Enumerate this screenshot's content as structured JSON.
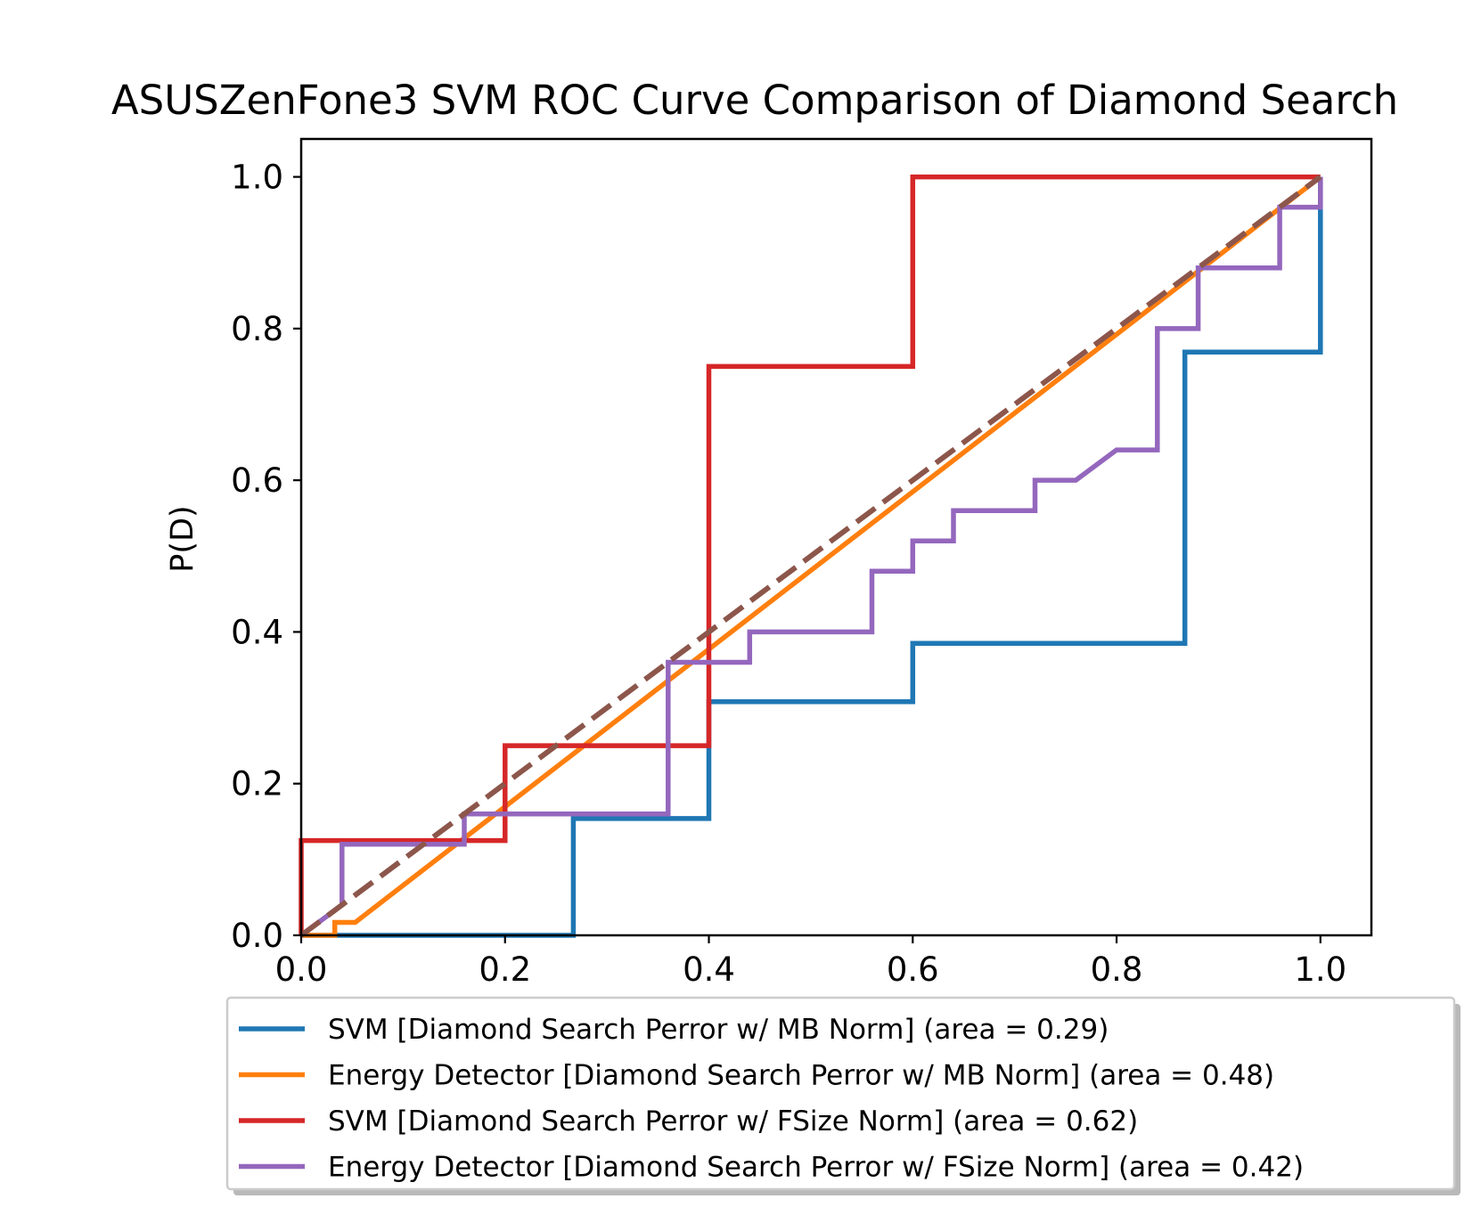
{
  "chart_data": {
    "type": "line",
    "title": "ASUSZenFone3 SVM ROC Curve Comparison of Diamond Search",
    "xlabel": "",
    "ylabel": "P(D)",
    "xlim": [
      0.0,
      1.05
    ],
    "ylim": [
      0.0,
      1.05
    ],
    "xticks": [
      "0.0",
      "0.2",
      "0.4",
      "0.6",
      "0.8",
      "1.0"
    ],
    "yticks": [
      "0.0",
      "0.2",
      "0.4",
      "0.6",
      "0.8",
      "1.0"
    ],
    "grid": false,
    "legend_position": "below",
    "series": [
      {
        "name": "SVM [Diamond Search Perror w/ MB Norm] (area = 0.29)",
        "color": "#1f77b4",
        "x": [
          0.0,
          0.267,
          0.267,
          0.4,
          0.4,
          0.6,
          0.6,
          0.867,
          0.867,
          1.0,
          1.0
        ],
        "y": [
          0.0,
          0.0,
          0.154,
          0.154,
          0.308,
          0.308,
          0.385,
          0.385,
          0.769,
          0.769,
          1.0
        ]
      },
      {
        "name": "Energy Detector [Diamond Search Perror w/ MB Norm] (area = 0.48)",
        "color": "#ff7f0e",
        "x": [
          0.0,
          0.033,
          0.033,
          0.053,
          1.0
        ],
        "y": [
          0.0,
          0.0,
          0.017,
          0.017,
          1.0
        ]
      },
      {
        "name": "SVM [Diamond Search Perror w/ FSize Norm] (area = 0.62)",
        "color": "#d62728",
        "x": [
          0.0,
          0.0,
          0.2,
          0.2,
          0.4,
          0.4,
          0.6,
          0.6,
          1.0
        ],
        "y": [
          0.0,
          0.125,
          0.125,
          0.25,
          0.25,
          0.75,
          0.75,
          1.0,
          1.0
        ]
      },
      {
        "name": "Energy Detector [Diamond Search Perror w/ FSize Norm] (area = 0.42)",
        "color": "#9467bd",
        "x": [
          0.0,
          0.04,
          0.04,
          0.16,
          0.16,
          0.36,
          0.36,
          0.44,
          0.44,
          0.56,
          0.56,
          0.6,
          0.6,
          0.64,
          0.64,
          0.72,
          0.72,
          0.76,
          0.8,
          0.84,
          0.84,
          0.88,
          0.88,
          0.96,
          0.96,
          1.0,
          1.0
        ],
        "y": [
          0.0,
          0.04,
          0.12,
          0.12,
          0.16,
          0.16,
          0.36,
          0.36,
          0.4,
          0.4,
          0.48,
          0.48,
          0.52,
          0.52,
          0.56,
          0.56,
          0.6,
          0.6,
          0.64,
          0.64,
          0.8,
          0.8,
          0.88,
          0.88,
          0.96,
          0.96,
          1.0
        ]
      }
    ],
    "reference_line": {
      "color": "#8c564b",
      "dashed": true,
      "x": [
        0.0,
        1.0
      ],
      "y": [
        0.0,
        1.0
      ]
    }
  }
}
